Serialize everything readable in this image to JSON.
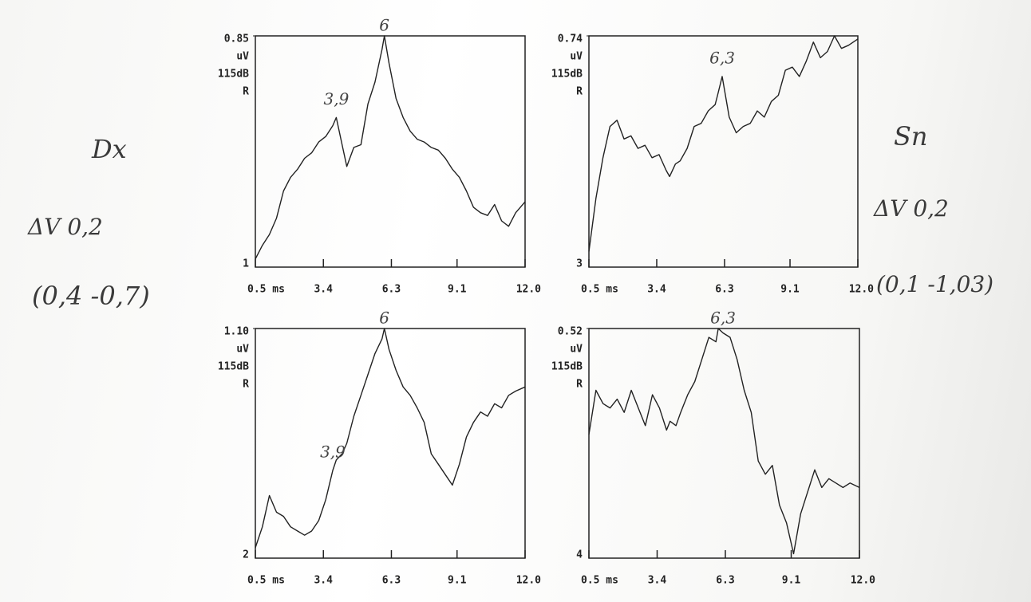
{
  "chart_data": [
    {
      "type": "line",
      "yticks": [
        0.85
      ],
      "ylim": [
        0,
        0.85
      ],
      "y_unit": "uV",
      "stimulus": "115dB",
      "ear": "R",
      "channel": "1",
      "xlim": [
        0.5,
        12
      ],
      "xticks": [
        {
          "value": 0.5,
          "label": "0.5 ms"
        },
        3.4,
        6.3,
        9.1,
        {
          "value": 12,
          "label": "12.0"
        }
      ],
      "color": "#222222",
      "x": [
        0.5,
        0.8,
        1.1,
        1.4,
        1.7,
        2.0,
        2.3,
        2.6,
        2.9,
        3.2,
        3.5,
        3.8,
        3.95,
        4.2,
        4.4,
        4.7,
        5.0,
        5.3,
        5.6,
        5.9,
        6.0,
        6.2,
        6.5,
        6.8,
        7.1,
        7.4,
        7.7,
        8.0,
        8.3,
        8.6,
        8.9,
        9.2,
        9.5,
        9.8,
        10.1,
        10.4,
        10.7,
        11.0,
        11.3,
        11.6,
        12.0
      ],
      "values": [
        0.03,
        0.08,
        0.12,
        0.18,
        0.28,
        0.33,
        0.36,
        0.4,
        0.42,
        0.46,
        0.48,
        0.52,
        0.55,
        0.45,
        0.37,
        0.44,
        0.45,
        0.6,
        0.68,
        0.8,
        0.85,
        0.75,
        0.62,
        0.55,
        0.5,
        0.47,
        0.46,
        0.44,
        0.43,
        0.4,
        0.36,
        0.33,
        0.28,
        0.22,
        0.2,
        0.19,
        0.23,
        0.17,
        0.15,
        0.2,
        0.24
      ],
      "annotations": [
        {
          "text": "3,9",
          "x": 3.95
        },
        {
          "text": "6",
          "x": 6.0
        }
      ]
    },
    {
      "type": "line",
      "yticks": [
        0.74
      ],
      "ylim": [
        0,
        0.74
      ],
      "y_unit": "uV",
      "stimulus": "115dB",
      "ear": "R",
      "channel": "3",
      "xlim": [
        0.5,
        12
      ],
      "xticks": [
        {
          "value": 0.5,
          "label": "0.5 ms"
        },
        3.4,
        6.3,
        9.1,
        {
          "value": 12,
          "label": "12.0"
        }
      ],
      "color": "#222222",
      "x": [
        0.5,
        0.8,
        1.1,
        1.4,
        1.7,
        2.0,
        2.3,
        2.6,
        2.9,
        3.2,
        3.5,
        3.8,
        3.95,
        4.2,
        4.4,
        4.7,
        5.0,
        5.3,
        5.6,
        5.9,
        6.0,
        6.2,
        6.5,
        6.8,
        7.1,
        7.4,
        7.7,
        8.0,
        8.3,
        8.6,
        8.9,
        9.2,
        9.5,
        9.8,
        10.1,
        10.4,
        10.7,
        11.0,
        11.3,
        11.6,
        12.0
      ],
      "values": [
        0.05,
        0.22,
        0.35,
        0.45,
        0.47,
        0.41,
        0.42,
        0.38,
        0.39,
        0.35,
        0.36,
        0.31,
        0.29,
        0.33,
        0.34,
        0.38,
        0.45,
        0.46,
        0.5,
        0.52,
        0.55,
        0.61,
        0.48,
        0.43,
        0.45,
        0.46,
        0.5,
        0.48,
        0.53,
        0.55,
        0.63,
        0.64,
        0.61,
        0.66,
        0.72,
        0.67,
        0.69,
        0.74,
        0.7,
        0.71,
        0.73
      ],
      "annotations": [
        {
          "text": "6,3",
          "x": 6.2
        }
      ]
    },
    {
      "type": "line",
      "yticks": [
        {
          "value": 1.1,
          "label": "1.10"
        }
      ],
      "ylim": [
        0,
        1.1
      ],
      "y_unit": "uV",
      "stimulus": "115dB",
      "ear": "R",
      "channel": "2",
      "xlim": [
        0.5,
        12
      ],
      "xticks": [
        {
          "value": 0.5,
          "label": "0.5 ms"
        },
        3.4,
        6.3,
        9.1,
        {
          "value": 12,
          "label": "12.0"
        }
      ],
      "color": "#222222",
      "x": [
        0.5,
        0.8,
        1.1,
        1.4,
        1.7,
        2.0,
        2.3,
        2.6,
        2.9,
        3.2,
        3.5,
        3.8,
        3.95,
        4.2,
        4.4,
        4.7,
        5.0,
        5.3,
        5.6,
        5.9,
        6.0,
        6.2,
        6.5,
        6.8,
        7.1,
        7.4,
        7.7,
        8.0,
        8.3,
        8.6,
        8.9,
        9.2,
        9.5,
        9.8,
        10.1,
        10.4,
        10.7,
        11.0,
        11.3,
        11.6,
        12.0
      ],
      "values": [
        0.05,
        0.15,
        0.3,
        0.22,
        0.2,
        0.15,
        0.13,
        0.11,
        0.13,
        0.18,
        0.28,
        0.42,
        0.47,
        0.5,
        0.55,
        0.68,
        0.78,
        0.88,
        0.98,
        1.05,
        1.1,
        1.0,
        0.9,
        0.82,
        0.78,
        0.72,
        0.65,
        0.5,
        0.45,
        0.4,
        0.35,
        0.45,
        0.58,
        0.65,
        0.7,
        0.68,
        0.74,
        0.72,
        0.78,
        0.8,
        0.82
      ],
      "annotations": [
        {
          "text": "3,9",
          "x": 3.8
        },
        {
          "text": "6",
          "x": 6.0
        }
      ]
    },
    {
      "type": "line",
      "yticks": [
        0.52
      ],
      "ylim": [
        0,
        0.52
      ],
      "y_unit": "uV",
      "stimulus": "115dB",
      "ear": "R",
      "channel": "4",
      "xlim": [
        0.5,
        12
      ],
      "xticks": [
        {
          "value": 0.5,
          "label": "0.5 ms"
        },
        3.4,
        6.3,
        9.1,
        {
          "value": 12,
          "label": "12.0"
        }
      ],
      "color": "#222222",
      "x": [
        0.5,
        0.8,
        1.1,
        1.4,
        1.7,
        2.0,
        2.3,
        2.6,
        2.9,
        3.2,
        3.5,
        3.8,
        3.95,
        4.2,
        4.4,
        4.7,
        5.0,
        5.3,
        5.6,
        5.9,
        6.0,
        6.2,
        6.5,
        6.8,
        7.1,
        7.4,
        7.7,
        8.0,
        8.3,
        8.6,
        8.9,
        9.2,
        9.5,
        9.8,
        10.1,
        10.4,
        10.7,
        11.0,
        11.3,
        11.6,
        12.0
      ],
      "values": [
        0.28,
        0.38,
        0.35,
        0.34,
        0.36,
        0.33,
        0.38,
        0.34,
        0.3,
        0.37,
        0.34,
        0.29,
        0.31,
        0.3,
        0.33,
        0.37,
        0.4,
        0.45,
        0.5,
        0.49,
        0.52,
        0.51,
        0.5,
        0.45,
        0.38,
        0.33,
        0.22,
        0.19,
        0.21,
        0.12,
        0.08,
        0.01,
        0.1,
        0.15,
        0.2,
        0.16,
        0.18,
        0.17,
        0.16,
        0.17,
        0.16
      ],
      "annotations": [
        {
          "text": "6,3",
          "x": 6.2
        }
      ]
    }
  ],
  "handwriting": {
    "left": [
      "Dx",
      "ΔV 0,2",
      "(0,4  -0,7)"
    ],
    "right": [
      "Sn",
      "ΔV 0,2",
      "(0,1  -1,03)"
    ]
  }
}
